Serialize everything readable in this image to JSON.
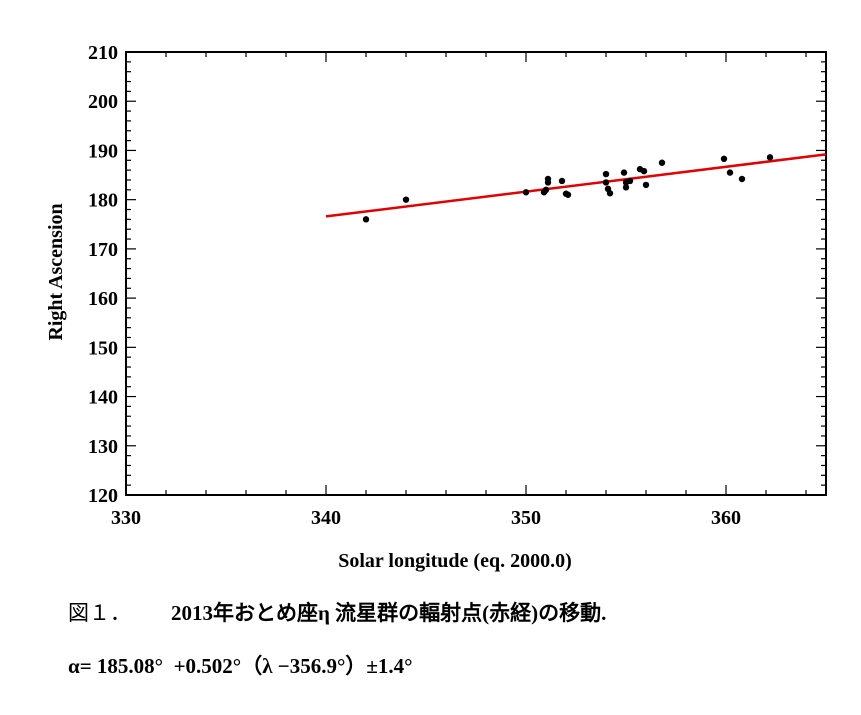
{
  "chart_data": {
    "type": "scatter",
    "xlabel": "Solar longitude (eq. 2000.0)",
    "ylabel": "Right Ascension",
    "xlim": [
      330,
      365
    ],
    "ylim": [
      120,
      210
    ],
    "xticks": [
      330,
      340,
      350,
      360
    ],
    "yticks": [
      120,
      130,
      140,
      150,
      160,
      170,
      180,
      190,
      200,
      210
    ],
    "points": [
      {
        "x": 342.0,
        "y": 176.0
      },
      {
        "x": 344.0,
        "y": 180.0
      },
      {
        "x": 350.0,
        "y": 181.5
      },
      {
        "x": 350.9,
        "y": 181.5
      },
      {
        "x": 351.0,
        "y": 182.0
      },
      {
        "x": 351.1,
        "y": 183.5
      },
      {
        "x": 351.1,
        "y": 184.2
      },
      {
        "x": 351.8,
        "y": 183.8
      },
      {
        "x": 352.0,
        "y": 181.2
      },
      {
        "x": 352.1,
        "y": 181.0
      },
      {
        "x": 354.0,
        "y": 185.2
      },
      {
        "x": 354.0,
        "y": 183.5
      },
      {
        "x": 354.1,
        "y": 182.2
      },
      {
        "x": 354.2,
        "y": 181.3
      },
      {
        "x": 354.9,
        "y": 185.5
      },
      {
        "x": 355.0,
        "y": 183.5
      },
      {
        "x": 355.0,
        "y": 182.5
      },
      {
        "x": 355.2,
        "y": 183.8
      },
      {
        "x": 355.7,
        "y": 186.2
      },
      {
        "x": 355.9,
        "y": 185.8
      },
      {
        "x": 356.0,
        "y": 183.0
      },
      {
        "x": 356.8,
        "y": 187.5
      },
      {
        "x": 359.9,
        "y": 188.3
      },
      {
        "x": 360.2,
        "y": 185.5
      },
      {
        "x": 360.8,
        "y": 184.2
      },
      {
        "x": 362.2,
        "y": 188.6
      }
    ],
    "fit_line": {
      "x": [
        340,
        365
      ],
      "y": [
        176.6,
        189.2
      ],
      "color": "#e00000"
    },
    "point_color": "#000000"
  },
  "caption": {
    "figure_label": "図１．",
    "title": "2013年おとめ座η 流星群の輻射点(赤経)の移動.",
    "formula": "α= 185.08°  +0.502°（λ −356.9°）±1.4°"
  }
}
